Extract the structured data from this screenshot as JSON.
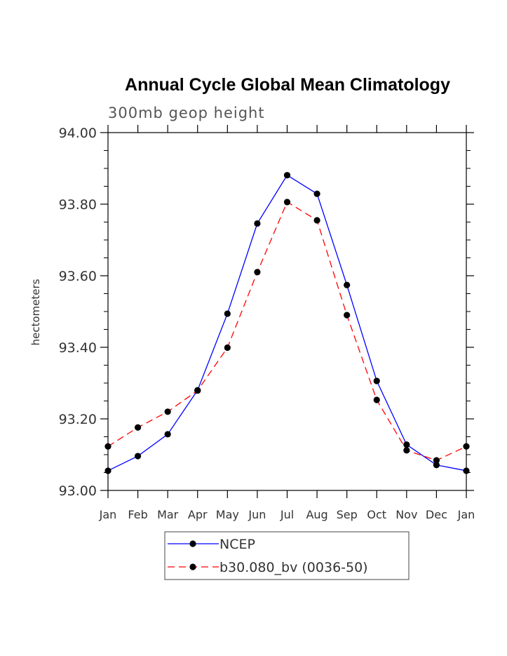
{
  "chart_data": {
    "type": "line",
    "title": "Annual Cycle Global Mean Climatology",
    "subtitle": "300mb geop height",
    "ylabel": "hectometers",
    "xlabel": "",
    "categories": [
      "Jan",
      "Feb",
      "Mar",
      "Apr",
      "May",
      "Jun",
      "Jul",
      "Aug",
      "Sep",
      "Oct",
      "Nov",
      "Dec",
      "Jan"
    ],
    "ylim": [
      93.0,
      94.0
    ],
    "yticks": [
      "93.00",
      "93.20",
      "93.40",
      "93.60",
      "93.80",
      "94.00"
    ],
    "legend_position": "bottom",
    "series": [
      {
        "name": "NCEP",
        "color": "#0000ff",
        "dash": "solid",
        "marker": "filled-circle",
        "values": [
          93.055,
          93.096,
          93.157,
          93.28,
          93.494,
          93.746,
          93.881,
          93.829,
          93.574,
          93.306,
          93.128,
          93.071,
          93.055
        ]
      },
      {
        "name": "b30.080_bv (0036-50)",
        "color": "#ff0000",
        "dash": "dashed",
        "marker": "filled-circle",
        "values": [
          93.123,
          93.176,
          93.22,
          93.279,
          93.399,
          93.61,
          93.806,
          93.755,
          93.49,
          93.253,
          93.112,
          93.084,
          93.123
        ]
      }
    ]
  }
}
